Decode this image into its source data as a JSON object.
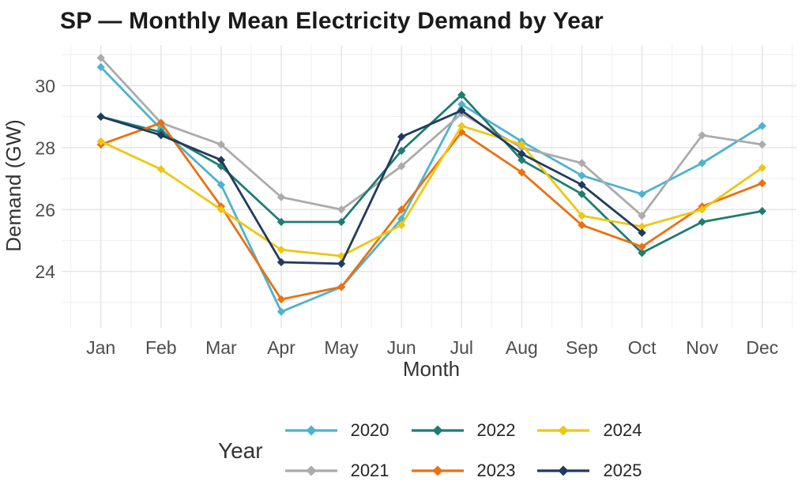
{
  "chart_data": {
    "type": "line",
    "title": "SP — Monthly Mean Electricity Demand by Year",
    "xlabel": "Month",
    "ylabel": "Demand (GW)",
    "categories": [
      "Jan",
      "Feb",
      "Mar",
      "Apr",
      "May",
      "Jun",
      "Jul",
      "Aug",
      "Sep",
      "Oct",
      "Nov",
      "Dec"
    ],
    "yticks_major": [
      24,
      26,
      28,
      30
    ],
    "yticks_minor": [
      23,
      25,
      27,
      29,
      31
    ],
    "ylim": [
      22.1,
      31.2
    ],
    "grid": "on",
    "marker": "diamond",
    "legend_position": "bottom",
    "legend_title": "Year",
    "series": [
      {
        "name": "2020",
        "color": "#4db3ce",
        "values": [
          30.6,
          28.6,
          26.8,
          22.7,
          23.5,
          25.7,
          29.4,
          28.2,
          27.1,
          26.5,
          27.5,
          28.7
        ]
      },
      {
        "name": "2021",
        "color": "#ababab",
        "values": [
          30.9,
          28.8,
          28.1,
          26.4,
          26.0,
          27.4,
          29.1,
          28.0,
          27.5,
          25.8,
          28.4,
          28.1
        ]
      },
      {
        "name": "2022",
        "color": "#1e7d72",
        "values": [
          29.0,
          28.5,
          27.4,
          25.6,
          25.6,
          27.9,
          29.7,
          27.6,
          26.5,
          24.6,
          25.6,
          25.95
        ]
      },
      {
        "name": "2023",
        "color": "#e97112",
        "values": [
          28.1,
          28.8,
          26.1,
          23.1,
          23.5,
          26.0,
          28.5,
          27.2,
          25.5,
          24.8,
          26.1,
          26.85
        ]
      },
      {
        "name": "2024",
        "color": "#eec712",
        "values": [
          28.2,
          27.3,
          26.0,
          24.7,
          24.5,
          25.5,
          28.7,
          28.1,
          25.8,
          25.45,
          26.0,
          27.35
        ]
      },
      {
        "name": "2025",
        "color": "#223a5e",
        "values": [
          29.0,
          28.4,
          27.6,
          24.3,
          24.25,
          28.35,
          29.2,
          27.8,
          26.8,
          25.25,
          null,
          null
        ]
      }
    ]
  },
  "legend": {
    "title": "Year"
  },
  "colors": {
    "grid_major": "#e4e4e4",
    "grid_minor": "#f1f1f1",
    "tick_label": "#4d4d4d",
    "axis_title": "#333333",
    "title": "#1a1a1a"
  }
}
